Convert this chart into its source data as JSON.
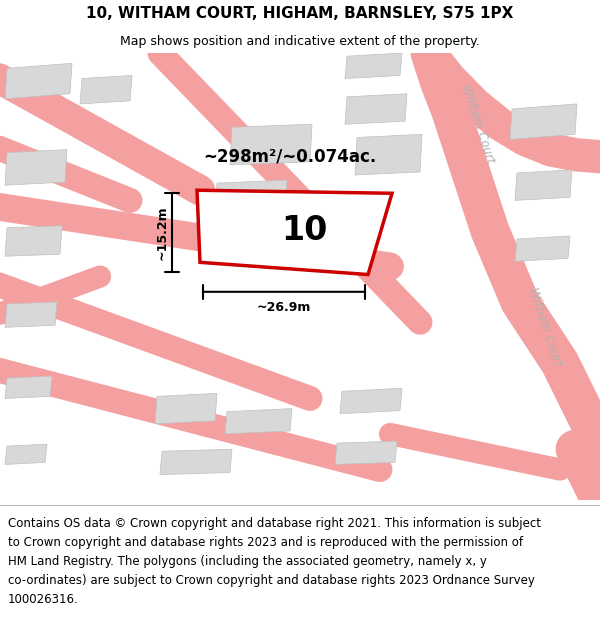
{
  "title": "10, WITHAM COURT, HIGHAM, BARNSLEY, S75 1PX",
  "subtitle": "Map shows position and indicative extent of the property.",
  "footer_line1": "Contains OS data © Crown copyright and database right 2021. This information is subject",
  "footer_line2": "to Crown copyright and database rights 2023 and is reproduced with the permission of",
  "footer_line3": "HM Land Registry. The polygons (including the associated geometry, namely x, y",
  "footer_line4": "co-ordinates) are subject to Crown copyright and database rights 2023 Ordnance Survey",
  "footer_line5": "100026316.",
  "area_text": "~298m²/~0.074ac.",
  "width_text": "~26.9m",
  "height_text": "~15.2m",
  "number_text": "10",
  "map_bg": "#efefef",
  "road_color": "#f5a0a0",
  "building_color": "#d8d8d8",
  "highlight_color": "#cc0000",
  "road_label_color": "#b0b0b0",
  "title_fontsize": 11,
  "subtitle_fontsize": 9,
  "footer_fontsize": 8.5,
  "map_border_color": "#cccccc"
}
